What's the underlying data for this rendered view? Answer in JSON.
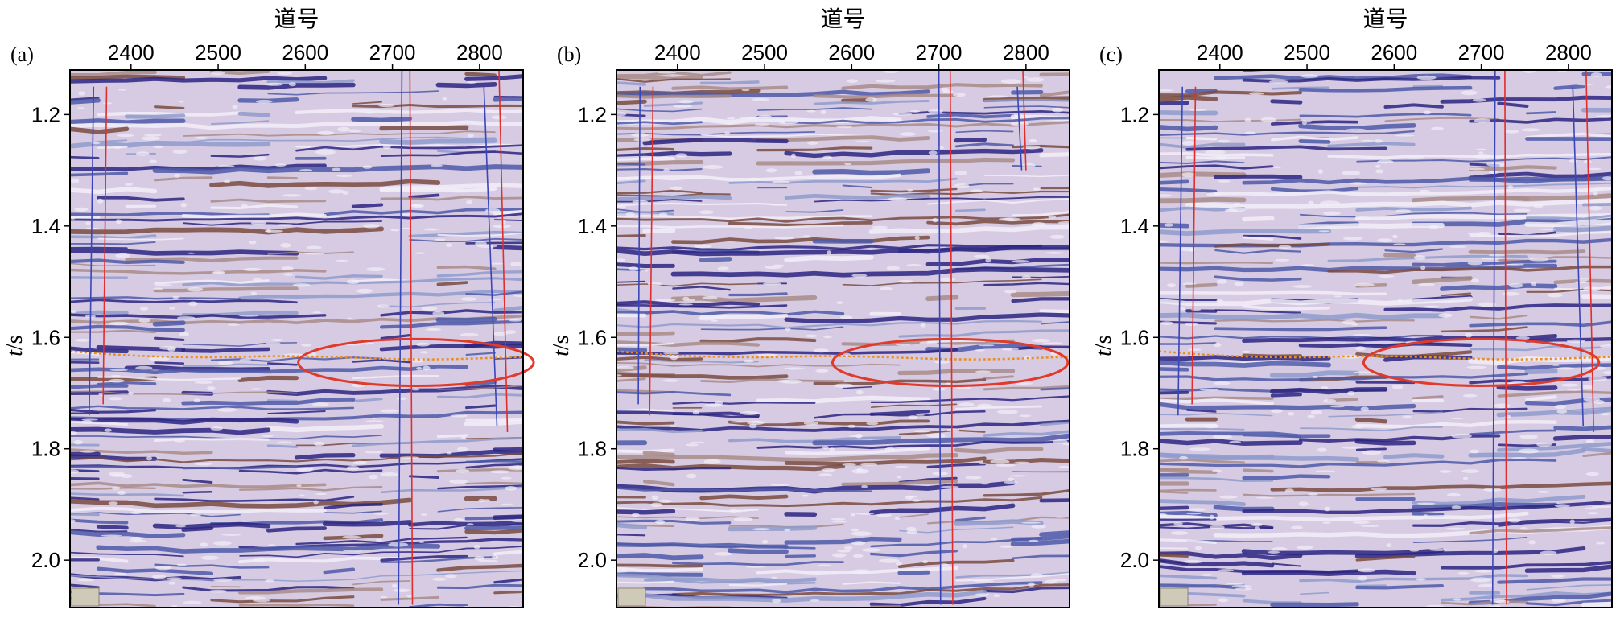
{
  "figure": {
    "colors": {
      "background": "#d7cbe3",
      "trough_deep": "#2b2480",
      "trough": "#4d5aa8",
      "trough_light": "#8f9ccc",
      "peak": "#7a4b40",
      "peak_light": "#a98c88",
      "highlight": "#f2eef8",
      "fault_blue": "#3a46b8",
      "fault_red": "#e02d2d",
      "ellipse": "#e03a2a",
      "horizon_pick": "#e8901e"
    },
    "panels": [
      {
        "label": "(a)",
        "x_title": "道号",
        "y_title_italic": "t",
        "y_title_unit": "/s",
        "x_ticks": [
          "2400",
          "2500",
          "2600",
          "2700",
          "2800"
        ],
        "y_ticks": [
          "1.2",
          "1.4",
          "1.6",
          "1.8",
          "2.0"
        ],
        "x_range": [
          2330,
          2850
        ],
        "y_range": [
          1.12,
          2.085
        ],
        "ellipse": {
          "center_trace": 2727,
          "center_time": 1.645,
          "radius_traces": 135,
          "radius_time": 0.042
        },
        "horizon_time": 1.625,
        "faults_blue": [
          [
            2357,
            1.15,
            2352,
            1.74
          ],
          [
            2711,
            1.1,
            2707,
            2.08
          ],
          [
            2805,
            1.15,
            2820,
            1.76
          ]
        ],
        "faults_red": [
          [
            2372,
            1.15,
            2368,
            1.72
          ],
          [
            2720,
            1.1,
            2723,
            2.08
          ],
          [
            2822,
            1.1,
            2832,
            1.77
          ]
        ]
      },
      {
        "label": "(b)",
        "x_title": "道号",
        "y_title_italic": "t",
        "y_title_unit": "/s",
        "x_ticks": [
          "2400",
          "2500",
          "2600",
          "2700",
          "2800"
        ],
        "y_ticks": [
          "1.2",
          "1.4",
          "1.6",
          "1.8",
          "2.0"
        ],
        "x_range": [
          2330,
          2850
        ],
        "y_range": [
          1.12,
          2.085
        ],
        "ellipse": {
          "center_trace": 2713,
          "center_time": 1.645,
          "radius_traces": 135,
          "radius_time": 0.042
        },
        "horizon_time": 1.625,
        "faults_blue": [
          [
            2357,
            1.15,
            2355,
            1.72
          ],
          [
            2700,
            1.1,
            2702,
            2.08
          ],
          [
            2790,
            1.15,
            2795,
            1.3
          ]
        ],
        "faults_red": [
          [
            2372,
            1.15,
            2368,
            1.74
          ],
          [
            2713,
            1.1,
            2716,
            2.08
          ],
          [
            2796,
            1.1,
            2800,
            1.3
          ]
        ]
      },
      {
        "label": "(c)",
        "x_title": "道号",
        "y_title_italic": "t",
        "y_title_unit": "/s",
        "x_ticks": [
          "2400",
          "2500",
          "2600",
          "2700",
          "2800"
        ],
        "y_ticks": [
          "1.2",
          "1.4",
          "1.6",
          "1.8",
          "2.0"
        ],
        "x_range": [
          2330,
          2850
        ],
        "y_range": [
          1.12,
          2.085
        ],
        "ellipse": {
          "center_trace": 2700,
          "center_time": 1.645,
          "radius_traces": 135,
          "radius_time": 0.042
        },
        "horizon_time": 1.625,
        "faults_blue": [
          [
            2357,
            1.15,
            2352,
            1.74
          ],
          [
            2716,
            1.1,
            2713,
            2.08
          ],
          [
            2805,
            1.15,
            2817,
            1.76
          ]
        ],
        "faults_red": [
          [
            2372,
            1.15,
            2368,
            1.72
          ],
          [
            2727,
            1.1,
            2729,
            2.08
          ],
          [
            2820,
            1.1,
            2829,
            1.77
          ]
        ]
      }
    ]
  }
}
